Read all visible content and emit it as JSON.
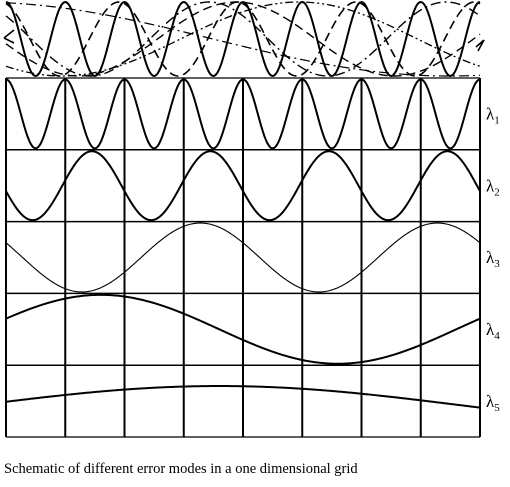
{
  "caption": "Schematic of different error modes in a one dimensional grid",
  "modes": [
    {
      "symbol": "λ",
      "subscript": "1",
      "cycles": 8,
      "phase": "cos",
      "line": "heavy"
    },
    {
      "symbol": "λ",
      "subscript": "2",
      "cycles": 4,
      "phase": "cos_shifted",
      "line": "heavy"
    },
    {
      "symbol": "λ",
      "subscript": "3",
      "cycles": 2,
      "phase": "cos_shifted",
      "line": "thin"
    },
    {
      "symbol": "λ",
      "subscript": "4",
      "cycles": 1,
      "phase": "cos_shifted",
      "line": "heavy"
    },
    {
      "symbol": "λ",
      "subscript": "5",
      "cycles": 0.5,
      "phase": "cos_shifted",
      "line": "heavy"
    }
  ],
  "grid": {
    "columns": 8,
    "rows": 5
  },
  "superposition_styles": [
    "solid",
    "dashed",
    "dash-dot",
    "dash-dot-dot"
  ],
  "colors": {
    "ink": "#000000",
    "background": "#ffffff"
  }
}
